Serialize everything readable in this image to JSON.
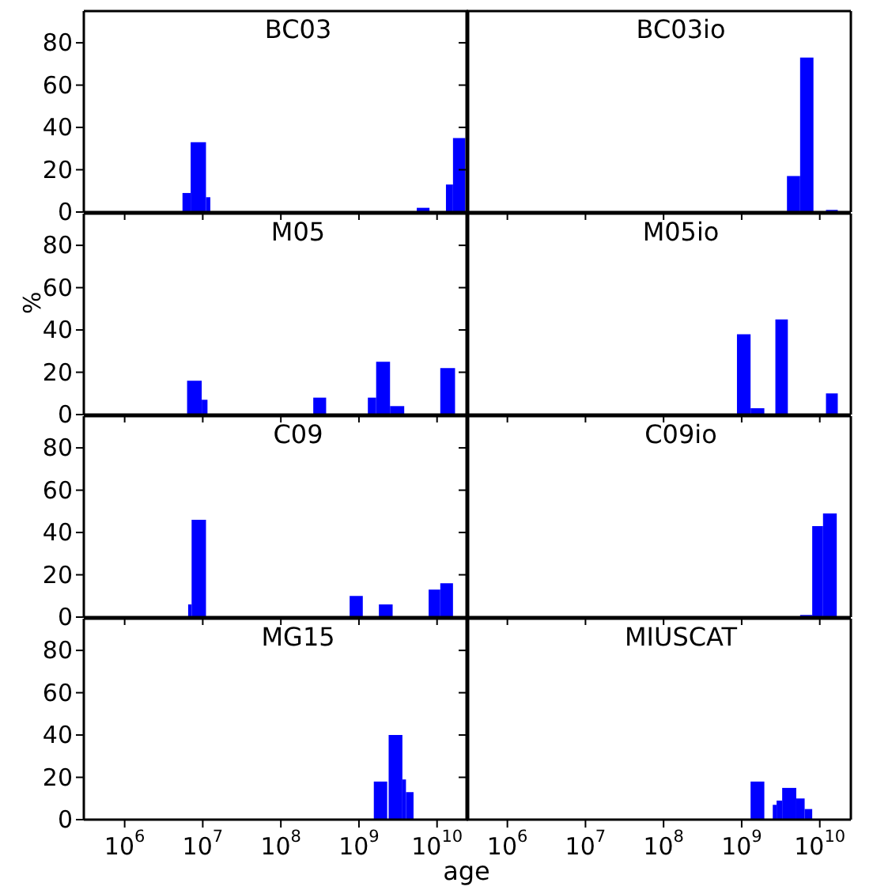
{
  "chart_data": [
    {
      "type": "histogram",
      "title": "BC03",
      "bins": [
        5500000,
        7000000,
        11000000,
        12500000,
        5500000000,
        8000000000,
        13000000000,
        16000000000,
        23000000000
      ],
      "values": [
        9,
        33,
        7,
        0,
        2,
        0,
        13,
        35
      ],
      "color": "#0000ff",
      "xlim": [
        300000,
        25000000000
      ],
      "xticks": [
        {
          "value": 1000000,
          "label": null
        },
        {
          "value": 10000000,
          "label": null
        },
        {
          "value": 100000000,
          "label": null
        },
        {
          "value": 1000000000,
          "label": null
        },
        {
          "value": 10000000000,
          "label": null
        }
      ],
      "ylim": [
        0,
        95
      ],
      "yticks": [
        0,
        20,
        40,
        60,
        80
      ],
      "log": "x",
      "tick_labels": "y"
    },
    {
      "type": "histogram",
      "title": "BC03io",
      "bins": [
        3800000000,
        5600000000,
        8300000000,
        12000000000,
        17000000000
      ],
      "values": [
        17,
        73,
        0,
        1
      ],
      "color": "#0000ff",
      "xlim": [
        300000,
        25000000000
      ],
      "xticks": [
        {
          "value": 1000000,
          "label": null
        },
        {
          "value": 10000000,
          "label": null
        },
        {
          "value": 100000000,
          "label": null
        },
        {
          "value": 1000000000,
          "label": null
        },
        {
          "value": 10000000000,
          "label": null
        }
      ],
      "ylim": [
        0,
        95
      ],
      "yticks": [
        0,
        20,
        40,
        60,
        80
      ],
      "log": "x",
      "tick_labels": false
    },
    {
      "type": "histogram",
      "title": "M05",
      "ylabel": "%",
      "bins": [
        6300000,
        9700000,
        11500000,
        260000000,
        380000000,
        1300000000,
        1660000000,
        2500000000,
        3800000000,
        11000000000,
        17000000000
      ],
      "values": [
        16,
        7,
        0,
        8,
        0,
        8,
        25,
        4,
        0,
        22
      ],
      "color": "#0000ff",
      "xlim": [
        300000,
        25000000000
      ],
      "xticks": [
        {
          "value": 1000000,
          "label": null
        },
        {
          "value": 10000000,
          "label": null
        },
        {
          "value": 100000000,
          "label": null
        },
        {
          "value": 1000000000,
          "label": null
        },
        {
          "value": 10000000000,
          "label": null
        }
      ],
      "ylim": [
        0,
        95
      ],
      "yticks": [
        0,
        20,
        40,
        60,
        80
      ],
      "log": "x",
      "tick_labels": "y"
    },
    {
      "type": "histogram",
      "title": "M05io",
      "bins": [
        870000000,
        1300000000,
        1950000000,
        2700000000,
        3900000000,
        12000000000,
        17000000000
      ],
      "values": [
        38,
        3,
        0,
        45,
        0,
        10
      ],
      "color": "#0000ff",
      "xlim": [
        300000,
        25000000000
      ],
      "xticks": [
        {
          "value": 1000000,
          "label": null
        },
        {
          "value": 10000000,
          "label": null
        },
        {
          "value": 100000000,
          "label": null
        },
        {
          "value": 1000000000,
          "label": null
        },
        {
          "value": 10000000000,
          "label": null
        }
      ],
      "ylim": [
        0,
        95
      ],
      "yticks": [
        0,
        20,
        40,
        60,
        80
      ],
      "log": "x",
      "tick_labels": false
    },
    {
      "type": "histogram",
      "title": "C09",
      "bins": [
        6500000,
        7200000,
        11000000,
        760000000,
        1120000000,
        1800000000,
        2700000000,
        7800000000,
        11000000000,
        16000000000
      ],
      "values": [
        6,
        46,
        0,
        10,
        0,
        6,
        0,
        13,
        16
      ],
      "color": "#0000ff",
      "xlim": [
        300000,
        25000000000
      ],
      "xticks": [
        {
          "value": 1000000,
          "label": null
        },
        {
          "value": 10000000,
          "label": null
        },
        {
          "value": 100000000,
          "label": null
        },
        {
          "value": 1000000000,
          "label": null
        },
        {
          "value": 10000000000,
          "label": null
        }
      ],
      "ylim": [
        0,
        95
      ],
      "yticks": [
        0,
        20,
        40,
        60,
        80
      ],
      "log": "x",
      "tick_labels": "y"
    },
    {
      "type": "histogram",
      "title": "C09io",
      "bins": [
        5600000000,
        8000000000,
        11000000000,
        16500000000
      ],
      "values": [
        1,
        43,
        49
      ],
      "color": "#0000ff",
      "xlim": [
        300000,
        25000000000
      ],
      "xticks": [
        {
          "value": 1000000,
          "label": null
        },
        {
          "value": 10000000,
          "label": null
        },
        {
          "value": 100000000,
          "label": null
        },
        {
          "value": 1000000000,
          "label": null
        },
        {
          "value": 10000000000,
          "label": null
        }
      ],
      "ylim": [
        0,
        95
      ],
      "yticks": [
        0,
        20,
        40,
        60,
        80
      ],
      "log": "x",
      "tick_labels": false
    },
    {
      "type": "histogram",
      "title": "MG15",
      "xlabel": "age",
      "bins": [
        1550000000,
        2300000000,
        2400000000,
        3600000000,
        4000000000,
        5000000000
      ],
      "values": [
        18,
        0,
        40,
        19,
        13
      ],
      "color": "#0000ff",
      "xlim": [
        300000,
        25000000000
      ],
      "xticks": [
        {
          "value": 1000000,
          "label": "10$^{6}$"
        },
        {
          "value": 10000000,
          "label": "10$^{7}$"
        },
        {
          "value": 100000000,
          "label": "10$^{8}$"
        },
        {
          "value": 1000000000,
          "label": "10$^{9}$"
        },
        {
          "value": 10000000000,
          "label": "10$^{10}$"
        }
      ],
      "ylim": [
        0,
        95
      ],
      "yticks": [
        0,
        20,
        40,
        60,
        80
      ],
      "log": "x"
    },
    {
      "type": "histogram",
      "title": "MIUSCAT",
      "bins": [
        1300000000,
        1950000000,
        2500000000,
        2800000000,
        3300000000,
        5000000000,
        6400000000,
        8000000000
      ],
      "values": [
        18,
        0,
        7,
        9,
        15,
        10,
        5
      ],
      "color": "#0000ff",
      "xlim": [
        300000,
        25000000000
      ],
      "xticks": [
        {
          "value": 1000000,
          "label": "10$^{6}$"
        },
        {
          "value": 10000000,
          "label": "10$^{7}$"
        },
        {
          "value": 100000000,
          "label": "10$^{8}$"
        },
        {
          "value": 1000000000,
          "label": "10$^{9}$"
        },
        {
          "value": 10000000000,
          "label": "10$^{10}$"
        }
      ],
      "ylim": [
        0,
        95
      ],
      "yticks": [
        0,
        20,
        40,
        60,
        80
      ],
      "log": "x",
      "tick_labels": "x"
    }
  ]
}
